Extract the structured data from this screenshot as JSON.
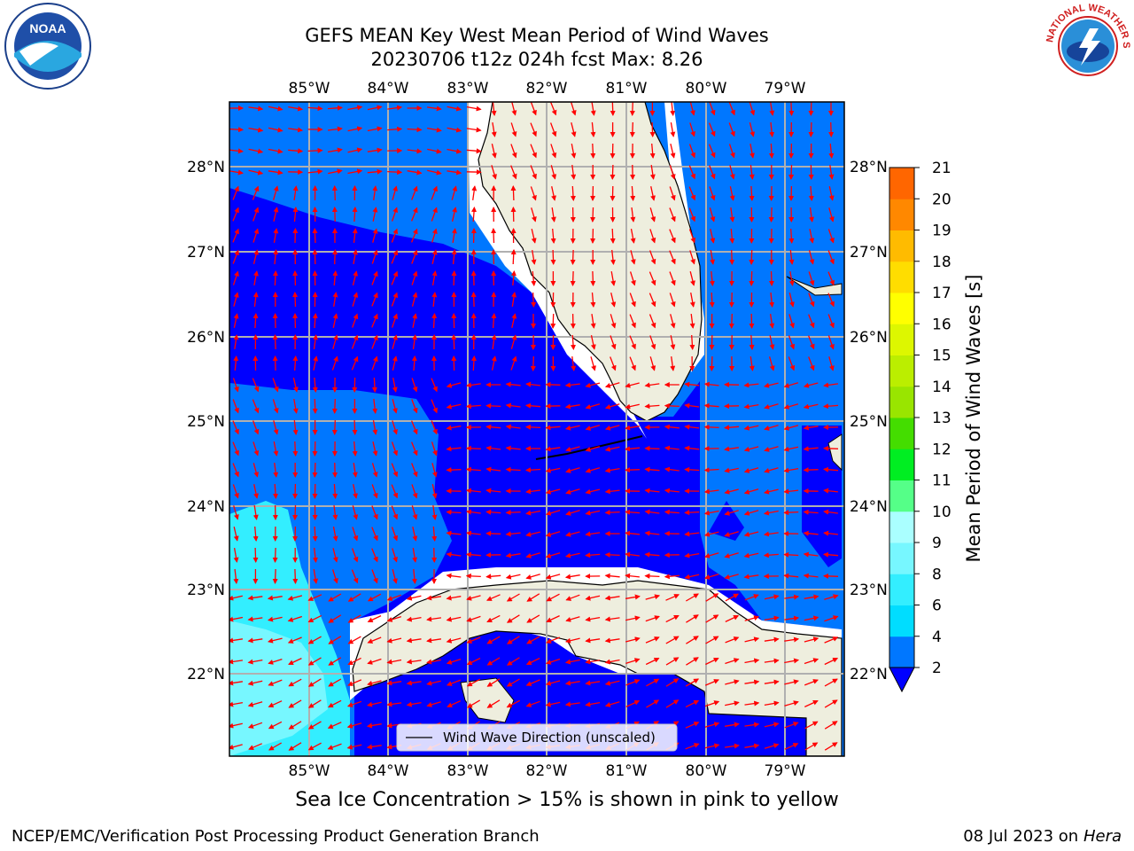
{
  "title_line1": "GEFS MEAN Key West Mean Period of Wind Waves",
  "title_line2": "20230706 t12z 024h fcst   Max: 8.26",
  "lon_labels": [
    "85°W",
    "84°W",
    "83°W",
    "82°W",
    "81°W",
    "80°W",
    "79°W"
  ],
  "lat_labels": [
    "28°N",
    "27°N",
    "26°N",
    "25°N",
    "24°N",
    "23°N",
    "22°N"
  ],
  "legend_label": "Wind Wave Direction (unscaled)",
  "colorbar": {
    "label": "Mean Period of Wind Waves [s]",
    "ticks": [
      "2",
      "4",
      "6",
      "8",
      "9",
      "10",
      "11",
      "12",
      "13",
      "14",
      "15",
      "16",
      "17",
      "18",
      "19",
      "20",
      "21"
    ],
    "colors": [
      "#0077ff",
      "#00ddff",
      "#33eeff",
      "#77f7ff",
      "#aaffff",
      "#55ff88",
      "#00ee22",
      "#44dd00",
      "#99e500",
      "#bbee00",
      "#ddf700",
      "#ffff00",
      "#ffdd00",
      "#ffbb00",
      "#ff8800",
      "#ff6600",
      "#ff3300",
      "#ff0000"
    ],
    "under_color": "#0000ff"
  },
  "ice_note": "Sea Ice Concentration > 15% is shown in pink to yellow",
  "footer_left": "NCEP/EMC/Verification Post Processing Product Generation Branch",
  "footer_right_prefix": "08 Jul 2023 on ",
  "footer_right_host": "Hera",
  "logos": {
    "noaa_text": "NOAA",
    "nws_text": "NATIONAL WEATHER SERVICE"
  }
}
